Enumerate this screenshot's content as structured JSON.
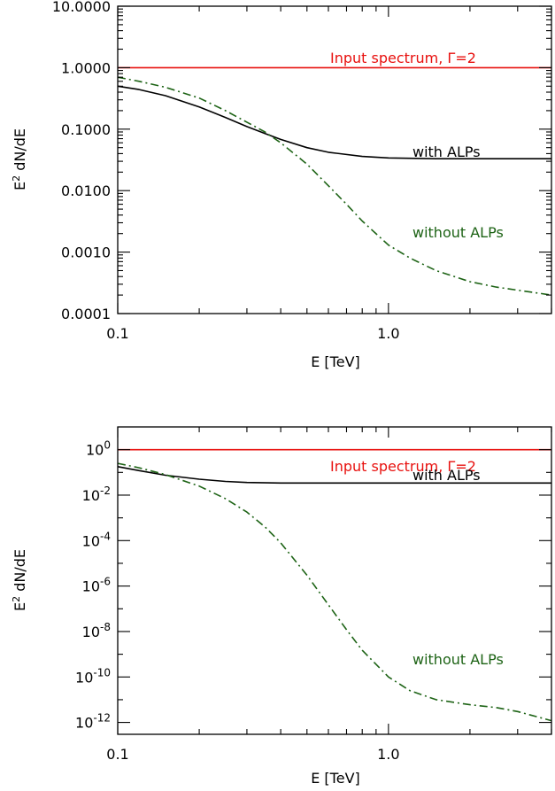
{
  "colors": {
    "input": "#e8110f",
    "with_alps": "#000000",
    "without_alps": "#1d6315",
    "axes": "#000000"
  },
  "chart_data": [
    {
      "type": "line",
      "title": "",
      "xlabel": "E [TeV]",
      "ylabel": "E² dN/dE",
      "x_scale": "log",
      "y_scale": "log",
      "xlim": [
        0.1,
        4.0
      ],
      "ylim": [
        0.0001,
        10.0
      ],
      "x_ticks": [
        {
          "value": 0.1,
          "label": "0.1"
        },
        {
          "value": 1.0,
          "label": "1.0"
        }
      ],
      "y_ticks": [
        {
          "value": 10.0,
          "label": "10.0000"
        },
        {
          "value": 1.0,
          "label": "1.0000"
        },
        {
          "value": 0.1,
          "label": "0.1000"
        },
        {
          "value": 0.01,
          "label": "0.0100"
        },
        {
          "value": 0.001,
          "label": "0.0010"
        },
        {
          "value": 0.0001,
          "label": "0.0001"
        }
      ],
      "grid": false,
      "series": [
        {
          "key": "input",
          "label": "Input spectrum, Γ=2",
          "style": "solid",
          "x": [
            0.1,
            4.0
          ],
          "y": [
            1.0,
            1.0
          ]
        },
        {
          "key": "with_alps",
          "label": "with ALPs",
          "style": "solid",
          "x": [
            0.1,
            0.12,
            0.15,
            0.2,
            0.25,
            0.3,
            0.35,
            0.4,
            0.5,
            0.6,
            0.8,
            1.0,
            1.5,
            2.0,
            3.0,
            4.0
          ],
          "y": [
            0.5,
            0.44,
            0.35,
            0.23,
            0.155,
            0.11,
            0.085,
            0.068,
            0.05,
            0.042,
            0.036,
            0.034,
            0.033,
            0.033,
            0.033,
            0.033
          ]
        },
        {
          "key": "without_alps",
          "label": "without ALPs",
          "style": "dashdot",
          "x": [
            0.1,
            0.12,
            0.15,
            0.2,
            0.25,
            0.3,
            0.35,
            0.4,
            0.5,
            0.6,
            0.7,
            0.8,
            1.0,
            1.2,
            1.5,
            2.0,
            2.5,
            3.0,
            4.0
          ],
          "y": [
            0.7,
            0.6,
            0.48,
            0.32,
            0.2,
            0.13,
            0.09,
            0.06,
            0.027,
            0.012,
            0.006,
            0.0032,
            0.0013,
            0.0008,
            0.0005,
            0.00033,
            0.00027,
            0.00024,
            0.0002
          ]
        }
      ],
      "annotations": [
        {
          "text": "Input spectrum, Γ=2",
          "series": "input"
        },
        {
          "text": "with ALPs",
          "series": "with_alps"
        },
        {
          "text": "without ALPs",
          "series": "without_alps"
        }
      ]
    },
    {
      "type": "line",
      "title": "",
      "xlabel": "E [TeV]",
      "ylabel": "E² dN/dE",
      "x_scale": "log",
      "y_scale": "log",
      "xlim": [
        0.1,
        4.0
      ],
      "ylim": [
        3e-13,
        10.0
      ],
      "x_ticks": [
        {
          "value": 0.1,
          "label": "0.1"
        },
        {
          "value": 1.0,
          "label": "1.0"
        }
      ],
      "y_ticks": [
        {
          "value": 1,
          "exp": "0"
        },
        {
          "value": 0.01,
          "exp": "-2"
        },
        {
          "value": 0.0001,
          "exp": "-4"
        },
        {
          "value": 1e-06,
          "exp": "-6"
        },
        {
          "value": 1e-08,
          "exp": "-8"
        },
        {
          "value": 1e-10,
          "exp": "-10"
        },
        {
          "value": 1e-12,
          "exp": "-12"
        }
      ],
      "y_tick_base": "10",
      "grid": false,
      "series": [
        {
          "key": "input",
          "label": "Input spectrum, Γ=2",
          "style": "solid",
          "x": [
            0.1,
            4.0
          ],
          "y": [
            1.0,
            1.0
          ]
        },
        {
          "key": "with_alps",
          "label": "with ALPs",
          "style": "solid",
          "x": [
            0.1,
            0.12,
            0.15,
            0.2,
            0.25,
            0.3,
            0.4,
            0.6,
            1.0,
            2.0,
            4.0
          ],
          "y": [
            0.18,
            0.12,
            0.075,
            0.05,
            0.04,
            0.036,
            0.034,
            0.034,
            0.034,
            0.034,
            0.034
          ]
        },
        {
          "key": "without_alps",
          "label": "without ALPs",
          "style": "dashdot",
          "x": [
            0.1,
            0.12,
            0.15,
            0.2,
            0.25,
            0.3,
            0.35,
            0.4,
            0.5,
            0.6,
            0.7,
            0.8,
            1.0,
            1.2,
            1.5,
            2.0,
            2.5,
            3.0,
            4.0
          ],
          "y": [
            0.25,
            0.16,
            0.08,
            0.025,
            0.007,
            0.0018,
            0.0004,
            8e-05,
            3e-06,
            1.5e-07,
            1.2e-08,
            1.5e-09,
            1e-10,
            2.5e-11,
            1e-11,
            6e-12,
            4.5e-12,
            3e-12,
            1.2e-12
          ]
        }
      ],
      "annotations": [
        {
          "text": "Input spectrum, Γ=2",
          "series": "input"
        },
        {
          "text": "with ALPs",
          "series": "with_alps"
        },
        {
          "text": "without ALPs",
          "series": "without_alps"
        }
      ]
    }
  ]
}
